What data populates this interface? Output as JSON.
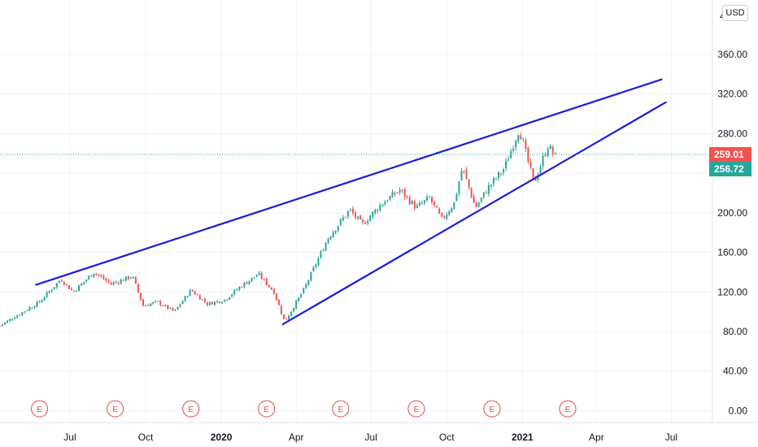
{
  "chart_data": {
    "type": "candlestick",
    "currency": "USD",
    "y_axis": {
      "ticks": [
        "0.00",
        "40.00",
        "80.00",
        "120.00",
        "160.00",
        "200.00",
        "240.00",
        "280.00",
        "320.00",
        "360.00"
      ],
      "ylim": [
        -12,
        415
      ],
      "partial_top_label": "4"
    },
    "x_axis": {
      "tick_labels": [
        {
          "label": "Jul",
          "date": "2019-07-01",
          "bold": false
        },
        {
          "label": "Oct",
          "date": "2019-10-01",
          "bold": false
        },
        {
          "label": "2020",
          "date": "2020-01-01",
          "bold": true
        },
        {
          "label": "Apr",
          "date": "2020-04-01",
          "bold": false
        },
        {
          "label": "Jul",
          "date": "2020-07-01",
          "bold": false
        },
        {
          "label": "Oct",
          "date": "2020-10-01",
          "bold": false
        },
        {
          "label": "2021",
          "date": "2021-01-01",
          "bold": true
        },
        {
          "label": "Apr",
          "date": "2021-04-01",
          "bold": false
        },
        {
          "label": "Jul",
          "date": "2021-07-01",
          "bold": false
        }
      ],
      "range": [
        "2019-04-07",
        "2021-08-20"
      ]
    },
    "grid": true,
    "series": [
      {
        "type": "candlestick",
        "up_color": "#26a69a",
        "down_color": "#ef5350",
        "price_path": [
          [
            "2019-04-07",
            86
          ],
          [
            "2019-05-01",
            98
          ],
          [
            "2019-05-25",
            110
          ],
          [
            "2019-06-20",
            133
          ],
          [
            "2019-07-05",
            120
          ],
          [
            "2019-07-30",
            140
          ],
          [
            "2019-08-20",
            128
          ],
          [
            "2019-09-15",
            136
          ],
          [
            "2019-09-28",
            106
          ],
          [
            "2019-10-15",
            110
          ],
          [
            "2019-11-05",
            100
          ],
          [
            "2019-11-25",
            122
          ],
          [
            "2019-12-15",
            108
          ],
          [
            "2020-01-05",
            112
          ],
          [
            "2020-01-25",
            126
          ],
          [
            "2020-02-15",
            138
          ],
          [
            "2020-03-05",
            120
          ],
          [
            "2020-03-18",
            90
          ],
          [
            "2020-04-10",
            122
          ],
          [
            "2020-05-10",
            175
          ],
          [
            "2020-06-05",
            203
          ],
          [
            "2020-06-20",
            188
          ],
          [
            "2020-07-15",
            210
          ],
          [
            "2020-08-05",
            223
          ],
          [
            "2020-08-25",
            205
          ],
          [
            "2020-09-10",
            215
          ],
          [
            "2020-09-25",
            193
          ],
          [
            "2020-10-10",
            210
          ],
          [
            "2020-10-20",
            246
          ],
          [
            "2020-11-05",
            205
          ],
          [
            "2020-11-20",
            225
          ],
          [
            "2020-12-10",
            245
          ],
          [
            "2020-12-28",
            285
          ],
          [
            "2021-01-15",
            230
          ],
          [
            "2021-02-01",
            268
          ],
          [
            "2021-02-10",
            257
          ]
        ]
      }
    ],
    "trendlines": [
      {
        "color": "#1b1be0",
        "from": [
          "2019-05-20",
          127
        ],
        "to": [
          "2021-06-20",
          335
        ]
      },
      {
        "color": "#1b1be0",
        "from": [
          "2020-03-15",
          87
        ],
        "to": [
          "2021-06-25",
          312
        ]
      }
    ],
    "price_line": {
      "value": 259.01,
      "color": "#26a69a"
    },
    "price_labels": [
      {
        "text": "259.01",
        "value": 259.01,
        "color": "#ef5350"
      },
      {
        "text": "256.72",
        "value": 256.72,
        "color": "#26a69a"
      }
    ],
    "earnings_markers": {
      "label": "E",
      "color": "#e04a4a",
      "dates": [
        "2019-05-25",
        "2019-08-25",
        "2019-11-25",
        "2020-02-25",
        "2020-05-25",
        "2020-08-25",
        "2020-11-25",
        "2021-02-25"
      ]
    }
  }
}
